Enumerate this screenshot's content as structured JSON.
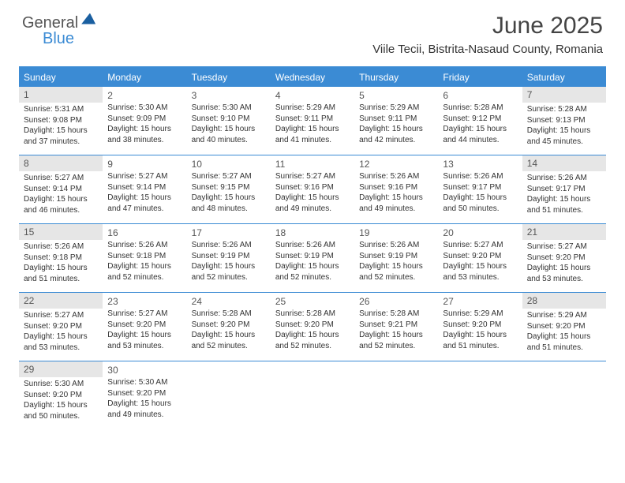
{
  "logo": {
    "part1": "General",
    "part2": "Blue"
  },
  "title": {
    "month": "June 2025",
    "location": "Viile Tecii, Bistrita-Nasaud County, Romania"
  },
  "colors": {
    "accent": "#3b8bd4",
    "shade_bg": "#e6e6e6",
    "text": "#333333"
  },
  "headers": [
    "Sunday",
    "Monday",
    "Tuesday",
    "Wednesday",
    "Thursday",
    "Friday",
    "Saturday"
  ],
  "weeks": [
    [
      {
        "n": "1",
        "shade": true,
        "sr": "Sunrise: 5:31 AM",
        "ss": "Sunset: 9:08 PM",
        "d1": "Daylight: 15 hours",
        "d2": "and 37 minutes."
      },
      {
        "n": "2",
        "shade": false,
        "sr": "Sunrise: 5:30 AM",
        "ss": "Sunset: 9:09 PM",
        "d1": "Daylight: 15 hours",
        "d2": "and 38 minutes."
      },
      {
        "n": "3",
        "shade": false,
        "sr": "Sunrise: 5:30 AM",
        "ss": "Sunset: 9:10 PM",
        "d1": "Daylight: 15 hours",
        "d2": "and 40 minutes."
      },
      {
        "n": "4",
        "shade": false,
        "sr": "Sunrise: 5:29 AM",
        "ss": "Sunset: 9:11 PM",
        "d1": "Daylight: 15 hours",
        "d2": "and 41 minutes."
      },
      {
        "n": "5",
        "shade": false,
        "sr": "Sunrise: 5:29 AM",
        "ss": "Sunset: 9:11 PM",
        "d1": "Daylight: 15 hours",
        "d2": "and 42 minutes."
      },
      {
        "n": "6",
        "shade": false,
        "sr": "Sunrise: 5:28 AM",
        "ss": "Sunset: 9:12 PM",
        "d1": "Daylight: 15 hours",
        "d2": "and 44 minutes."
      },
      {
        "n": "7",
        "shade": true,
        "sr": "Sunrise: 5:28 AM",
        "ss": "Sunset: 9:13 PM",
        "d1": "Daylight: 15 hours",
        "d2": "and 45 minutes."
      }
    ],
    [
      {
        "n": "8",
        "shade": true,
        "sr": "Sunrise: 5:27 AM",
        "ss": "Sunset: 9:14 PM",
        "d1": "Daylight: 15 hours",
        "d2": "and 46 minutes."
      },
      {
        "n": "9",
        "shade": false,
        "sr": "Sunrise: 5:27 AM",
        "ss": "Sunset: 9:14 PM",
        "d1": "Daylight: 15 hours",
        "d2": "and 47 minutes."
      },
      {
        "n": "10",
        "shade": false,
        "sr": "Sunrise: 5:27 AM",
        "ss": "Sunset: 9:15 PM",
        "d1": "Daylight: 15 hours",
        "d2": "and 48 minutes."
      },
      {
        "n": "11",
        "shade": false,
        "sr": "Sunrise: 5:27 AM",
        "ss": "Sunset: 9:16 PM",
        "d1": "Daylight: 15 hours",
        "d2": "and 49 minutes."
      },
      {
        "n": "12",
        "shade": false,
        "sr": "Sunrise: 5:26 AM",
        "ss": "Sunset: 9:16 PM",
        "d1": "Daylight: 15 hours",
        "d2": "and 49 minutes."
      },
      {
        "n": "13",
        "shade": false,
        "sr": "Sunrise: 5:26 AM",
        "ss": "Sunset: 9:17 PM",
        "d1": "Daylight: 15 hours",
        "d2": "and 50 minutes."
      },
      {
        "n": "14",
        "shade": true,
        "sr": "Sunrise: 5:26 AM",
        "ss": "Sunset: 9:17 PM",
        "d1": "Daylight: 15 hours",
        "d2": "and 51 minutes."
      }
    ],
    [
      {
        "n": "15",
        "shade": true,
        "sr": "Sunrise: 5:26 AM",
        "ss": "Sunset: 9:18 PM",
        "d1": "Daylight: 15 hours",
        "d2": "and 51 minutes."
      },
      {
        "n": "16",
        "shade": false,
        "sr": "Sunrise: 5:26 AM",
        "ss": "Sunset: 9:18 PM",
        "d1": "Daylight: 15 hours",
        "d2": "and 52 minutes."
      },
      {
        "n": "17",
        "shade": false,
        "sr": "Sunrise: 5:26 AM",
        "ss": "Sunset: 9:19 PM",
        "d1": "Daylight: 15 hours",
        "d2": "and 52 minutes."
      },
      {
        "n": "18",
        "shade": false,
        "sr": "Sunrise: 5:26 AM",
        "ss": "Sunset: 9:19 PM",
        "d1": "Daylight: 15 hours",
        "d2": "and 52 minutes."
      },
      {
        "n": "19",
        "shade": false,
        "sr": "Sunrise: 5:26 AM",
        "ss": "Sunset: 9:19 PM",
        "d1": "Daylight: 15 hours",
        "d2": "and 52 minutes."
      },
      {
        "n": "20",
        "shade": false,
        "sr": "Sunrise: 5:27 AM",
        "ss": "Sunset: 9:20 PM",
        "d1": "Daylight: 15 hours",
        "d2": "and 53 minutes."
      },
      {
        "n": "21",
        "shade": true,
        "sr": "Sunrise: 5:27 AM",
        "ss": "Sunset: 9:20 PM",
        "d1": "Daylight: 15 hours",
        "d2": "and 53 minutes."
      }
    ],
    [
      {
        "n": "22",
        "shade": true,
        "sr": "Sunrise: 5:27 AM",
        "ss": "Sunset: 9:20 PM",
        "d1": "Daylight: 15 hours",
        "d2": "and 53 minutes."
      },
      {
        "n": "23",
        "shade": false,
        "sr": "Sunrise: 5:27 AM",
        "ss": "Sunset: 9:20 PM",
        "d1": "Daylight: 15 hours",
        "d2": "and 53 minutes."
      },
      {
        "n": "24",
        "shade": false,
        "sr": "Sunrise: 5:28 AM",
        "ss": "Sunset: 9:20 PM",
        "d1": "Daylight: 15 hours",
        "d2": "and 52 minutes."
      },
      {
        "n": "25",
        "shade": false,
        "sr": "Sunrise: 5:28 AM",
        "ss": "Sunset: 9:20 PM",
        "d1": "Daylight: 15 hours",
        "d2": "and 52 minutes."
      },
      {
        "n": "26",
        "shade": false,
        "sr": "Sunrise: 5:28 AM",
        "ss": "Sunset: 9:21 PM",
        "d1": "Daylight: 15 hours",
        "d2": "and 52 minutes."
      },
      {
        "n": "27",
        "shade": false,
        "sr": "Sunrise: 5:29 AM",
        "ss": "Sunset: 9:20 PM",
        "d1": "Daylight: 15 hours",
        "d2": "and 51 minutes."
      },
      {
        "n": "28",
        "shade": true,
        "sr": "Sunrise: 5:29 AM",
        "ss": "Sunset: 9:20 PM",
        "d1": "Daylight: 15 hours",
        "d2": "and 51 minutes."
      }
    ],
    [
      {
        "n": "29",
        "shade": true,
        "sr": "Sunrise: 5:30 AM",
        "ss": "Sunset: 9:20 PM",
        "d1": "Daylight: 15 hours",
        "d2": "and 50 minutes."
      },
      {
        "n": "30",
        "shade": false,
        "sr": "Sunrise: 5:30 AM",
        "ss": "Sunset: 9:20 PM",
        "d1": "Daylight: 15 hours",
        "d2": "and 49 minutes."
      },
      null,
      null,
      null,
      null,
      null
    ]
  ]
}
